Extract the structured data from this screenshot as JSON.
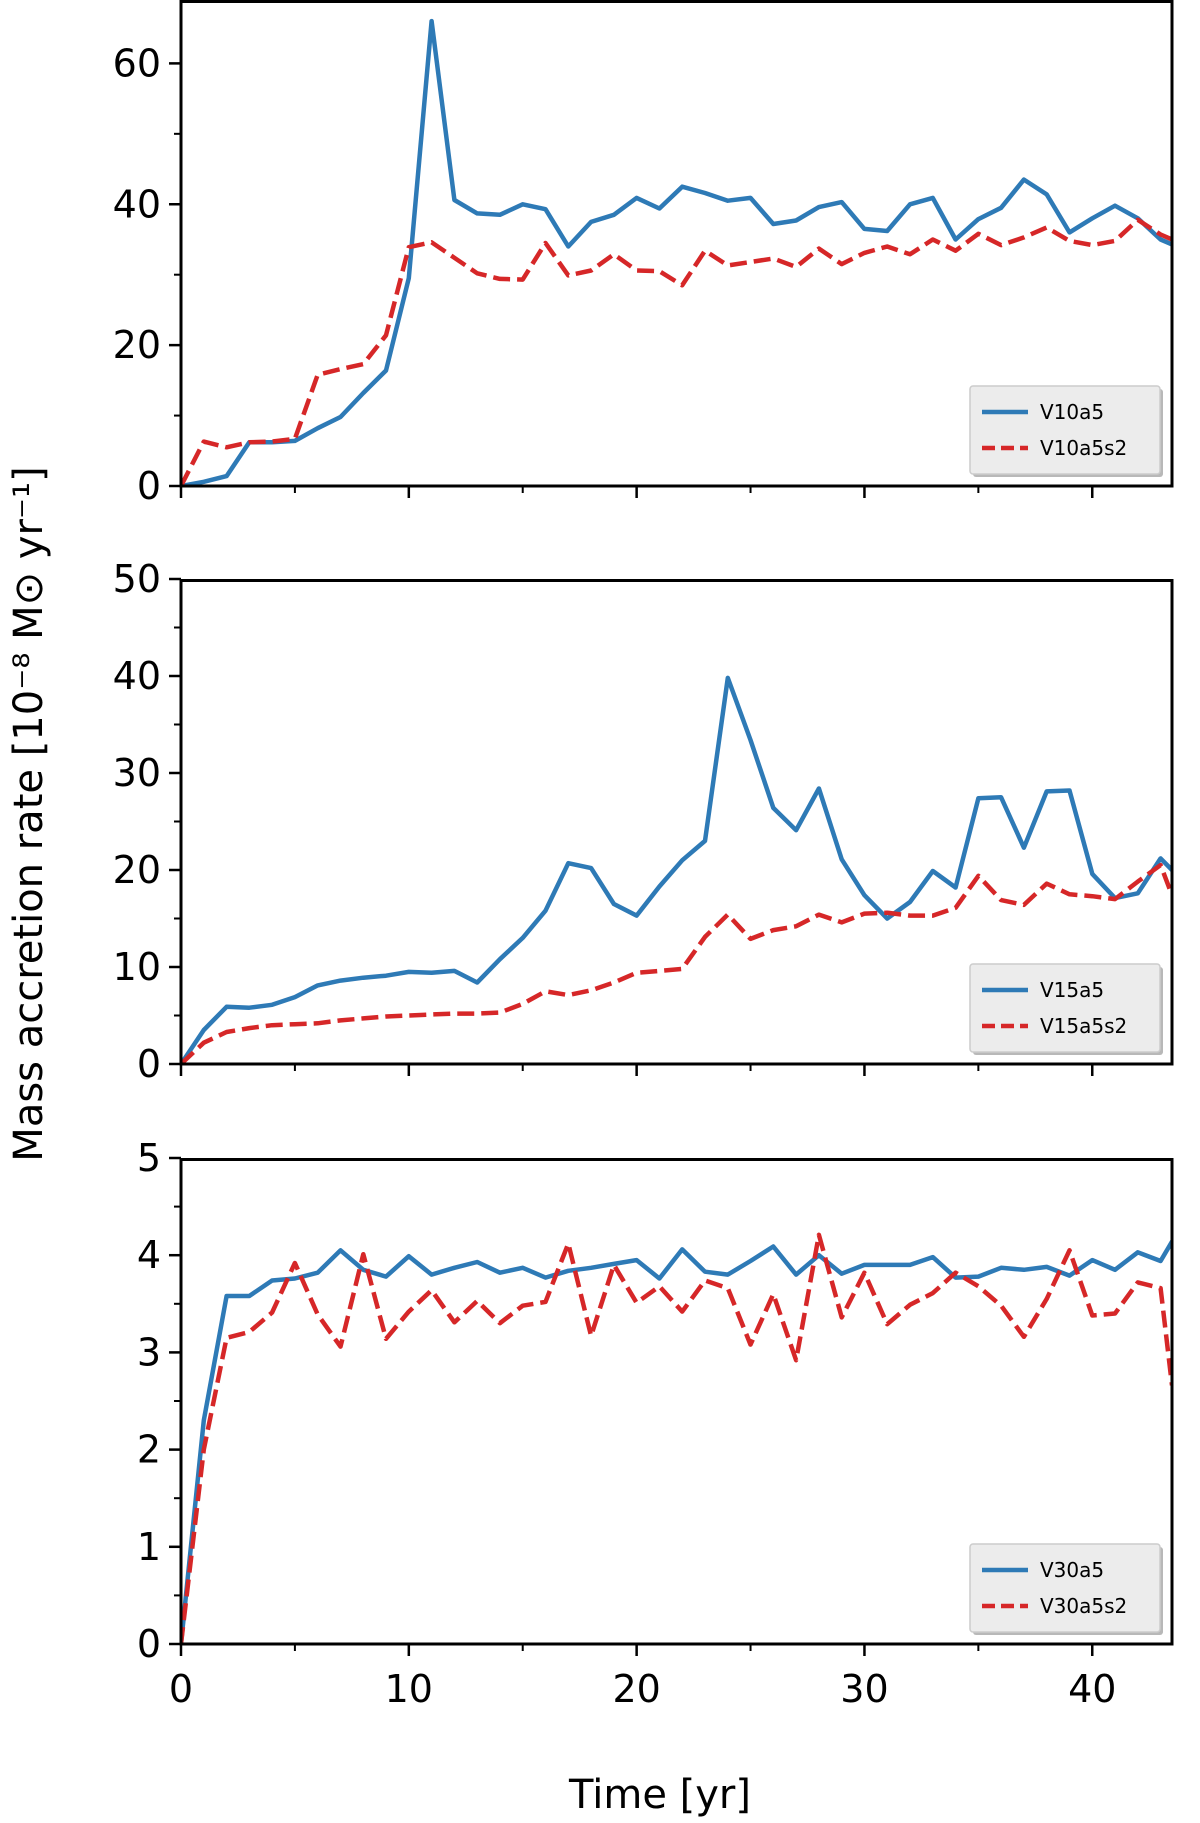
{
  "figure": {
    "xlabel": "Time [yr]",
    "ylabel": "Mass accretion rate [10⁻⁸ M⊙ yr⁻¹]",
    "xlim": [
      0,
      43.5
    ],
    "xticks": [
      0,
      10,
      20,
      30,
      40
    ],
    "colors": {
      "blue": "#2e7ab6",
      "red": "#d62728"
    }
  },
  "chart_data": [
    {
      "type": "line",
      "title": "",
      "xlabel": "Time [yr]",
      "ylabel": "Mass accretion rate [10⁻⁸ M⊙ yr⁻¹]",
      "xlim": [
        0,
        43.5
      ],
      "ylim": [
        0,
        69
      ],
      "yticks": [
        0,
        20,
        40,
        60
      ],
      "yminor": [
        10,
        30,
        50
      ],
      "legend_position": "bottom-right",
      "series": [
        {
          "name": "V10a5",
          "style": "solid",
          "color": "#2e7ab6",
          "x": [
            0,
            1,
            2,
            3,
            4,
            5,
            6,
            7,
            8,
            9,
            10,
            11,
            12,
            13,
            14,
            15,
            16,
            17,
            18,
            19,
            20,
            21,
            22,
            23,
            24,
            25,
            26,
            27,
            28,
            29,
            30,
            31,
            32,
            33,
            34,
            35,
            36,
            37,
            38,
            39,
            40,
            41,
            42,
            43,
            43.5
          ],
          "y": [
            0,
            0.6,
            1.4,
            6.2,
            6.2,
            6.4,
            8.2,
            9.8,
            13.2,
            16.4,
            29.5,
            66,
            40.6,
            38.7,
            38.5,
            40.0,
            39.3,
            34.0,
            37.5,
            38.5,
            40.9,
            39.4,
            42.5,
            41.6,
            40.5,
            40.9,
            37.2,
            37.7,
            39.6,
            40.3,
            36.5,
            36.2,
            40.0,
            40.9,
            35.0,
            37.9,
            39.5,
            43.5,
            41.4,
            36.0,
            38.0,
            39.8,
            38.0,
            35.0,
            34.3
          ]
        },
        {
          "name": "V10a5s2",
          "style": "dashed",
          "color": "#d62728",
          "x": [
            0,
            1,
            2,
            3,
            4,
            5,
            6,
            7,
            8,
            9,
            10,
            11,
            12,
            13,
            14,
            15,
            16,
            17,
            18,
            19,
            20,
            21,
            22,
            23,
            24,
            25,
            26,
            27,
            28,
            29,
            30,
            31,
            32,
            33,
            34,
            35,
            36,
            37,
            38,
            39,
            40,
            41,
            42,
            43,
            43.5
          ],
          "y": [
            0,
            6.3,
            5.5,
            6.2,
            6.3,
            6.7,
            15.8,
            16.6,
            17.3,
            21.4,
            33.9,
            34.6,
            32.4,
            30.2,
            29.4,
            29.3,
            34.5,
            29.9,
            30.6,
            32.9,
            30.6,
            30.5,
            28.5,
            33.4,
            31.3,
            31.8,
            32.3,
            31.1,
            33.7,
            31.5,
            33.1,
            34.0,
            32.9,
            35.0,
            33.4,
            35.8,
            34.2,
            35.3,
            36.7,
            34.8,
            34.2,
            34.8,
            37.8,
            35.7,
            35.0
          ]
        }
      ]
    },
    {
      "type": "line",
      "title": "",
      "xlabel": "Time [yr]",
      "ylabel": "Mass accretion rate [10⁻⁸ M⊙ yr⁻¹]",
      "xlim": [
        0,
        43.5
      ],
      "ylim": [
        0,
        50
      ],
      "yticks": [
        0,
        10,
        20,
        30,
        40,
        50
      ],
      "yminor": [
        5,
        15,
        25,
        35,
        45
      ],
      "legend_position": "bottom-right",
      "series": [
        {
          "name": "V15a5",
          "style": "solid",
          "color": "#2e7ab6",
          "x": [
            0,
            1,
            2,
            3,
            4,
            5,
            6,
            7,
            8,
            9,
            10,
            11,
            12,
            13,
            14,
            15,
            16,
            17,
            18,
            19,
            20,
            21,
            22,
            23,
            24,
            25,
            26,
            27,
            28,
            29,
            30,
            31,
            32,
            33,
            34,
            35,
            36,
            37,
            38,
            39,
            40,
            41,
            42,
            43,
            43.5
          ],
          "y": [
            0,
            3.5,
            5.9,
            5.8,
            6.1,
            6.9,
            8.1,
            8.6,
            8.9,
            9.1,
            9.5,
            9.4,
            9.6,
            8.4,
            10.8,
            13.0,
            15.8,
            20.7,
            20.2,
            16.5,
            15.3,
            18.3,
            21.0,
            23.0,
            39.8,
            33.4,
            26.4,
            24.1,
            28.4,
            21.1,
            17.4,
            15.0,
            16.7,
            19.9,
            18.2,
            27.4,
            27.5,
            22.3,
            28.1,
            28.2,
            19.6,
            17.1,
            17.6,
            21.2,
            20.0
          ]
        },
        {
          "name": "V15a5s2",
          "style": "dashed",
          "color": "#d62728",
          "x": [
            0,
            1,
            2,
            3,
            4,
            5,
            6,
            7,
            8,
            9,
            10,
            11,
            12,
            13,
            14,
            15,
            16,
            17,
            18,
            19,
            20,
            21,
            22,
            23,
            24,
            25,
            26,
            27,
            28,
            29,
            30,
            31,
            32,
            33,
            34,
            35,
            36,
            37,
            38,
            39,
            40,
            41,
            42,
            43,
            43.5
          ],
          "y": [
            0,
            2.2,
            3.3,
            3.7,
            4.0,
            4.1,
            4.2,
            4.5,
            4.7,
            4.9,
            5.0,
            5.1,
            5.2,
            5.2,
            5.3,
            6.2,
            7.5,
            7.1,
            7.6,
            8.4,
            9.4,
            9.6,
            9.8,
            13.1,
            15.4,
            12.9,
            13.8,
            14.2,
            15.4,
            14.6,
            15.5,
            15.6,
            15.3,
            15.3,
            16.1,
            19.4,
            16.9,
            16.4,
            18.6,
            17.5,
            17.3,
            17.0,
            18.8,
            20.5,
            17.4
          ]
        }
      ]
    },
    {
      "type": "line",
      "title": "",
      "xlabel": "Time [yr]",
      "ylabel": "Mass accretion rate [10⁻⁸ M⊙ yr⁻¹]",
      "xlim": [
        0,
        43.5
      ],
      "ylim": [
        0,
        5
      ],
      "yticks": [
        0,
        1,
        2,
        3,
        4,
        5
      ],
      "yminor": [
        0.5,
        1.5,
        2.5,
        3.5,
        4.5
      ],
      "legend_position": "bottom-right",
      "series": [
        {
          "name": "V30a5",
          "style": "solid",
          "color": "#2e7ab6",
          "x": [
            0,
            1,
            2,
            3,
            4,
            5,
            6,
            7,
            8,
            9,
            10,
            11,
            12,
            13,
            14,
            15,
            16,
            17,
            18,
            19,
            20,
            21,
            22,
            23,
            24,
            25,
            26,
            27,
            28,
            29,
            30,
            31,
            32,
            33,
            34,
            35,
            36,
            37,
            38,
            39,
            40,
            41,
            42,
            43,
            43.5
          ],
          "y": [
            0,
            2.3,
            3.58,
            3.58,
            3.74,
            3.76,
            3.82,
            4.05,
            3.85,
            3.78,
            3.99,
            3.8,
            3.87,
            3.93,
            3.82,
            3.87,
            3.77,
            3.84,
            3.87,
            3.91,
            3.95,
            3.76,
            4.06,
            3.83,
            3.8,
            3.94,
            4.09,
            3.8,
            4.0,
            3.81,
            3.9,
            3.9,
            3.9,
            3.98,
            3.77,
            3.78,
            3.87,
            3.85,
            3.88,
            3.79,
            3.95,
            3.85,
            4.03,
            3.94,
            4.14
          ]
        },
        {
          "name": "V30a5s2",
          "style": "dashed",
          "color": "#d62728",
          "x": [
            0,
            1,
            2,
            3,
            4,
            5,
            6,
            7,
            8,
            9,
            10,
            11,
            12,
            13,
            14,
            15,
            16,
            17,
            18,
            19,
            20,
            21,
            22,
            23,
            24,
            25,
            26,
            27,
            28,
            29,
            30,
            31,
            32,
            33,
            34,
            35,
            36,
            37,
            38,
            39,
            40,
            41,
            42,
            43,
            43.5
          ],
          "y": [
            0,
            2.0,
            3.15,
            3.21,
            3.41,
            3.92,
            3.39,
            3.06,
            4.01,
            3.14,
            3.42,
            3.64,
            3.31,
            3.53,
            3.3,
            3.48,
            3.52,
            4.12,
            3.17,
            3.9,
            3.51,
            3.68,
            3.42,
            3.74,
            3.66,
            3.08,
            3.6,
            2.92,
            4.21,
            3.36,
            3.82,
            3.29,
            3.49,
            3.61,
            3.82,
            3.68,
            3.48,
            3.16,
            3.55,
            4.05,
            3.38,
            3.4,
            3.72,
            3.66,
            2.66
          ]
        }
      ]
    }
  ]
}
